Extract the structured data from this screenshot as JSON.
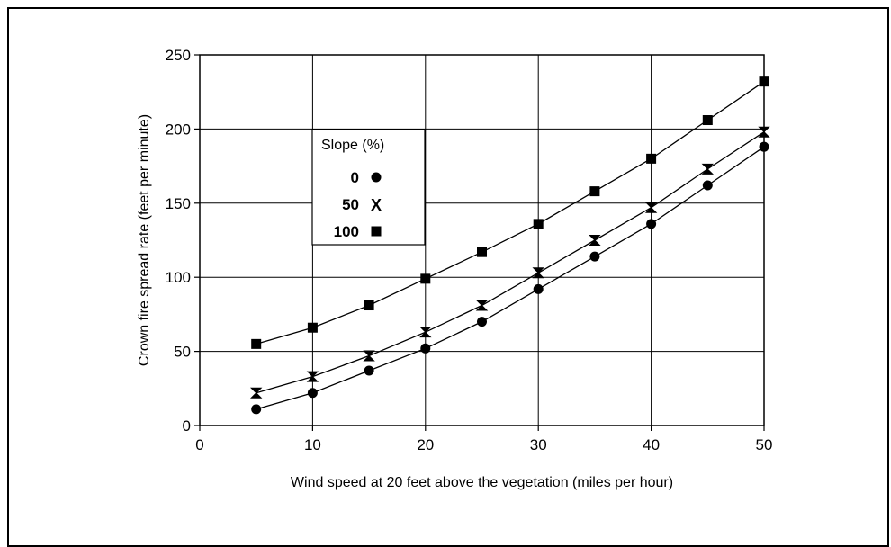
{
  "chart_data": {
    "type": "line",
    "title": "",
    "xlabel": "Wind speed at 20 feet above the vegetation (miles per hour)",
    "ylabel": "Crown fire spread rate (feet per minute)",
    "xlim": [
      0,
      50
    ],
    "ylim": [
      0,
      250
    ],
    "x_ticks": [
      0,
      10,
      20,
      30,
      40,
      50
    ],
    "y_ticks": [
      0,
      50,
      100,
      150,
      200,
      250
    ],
    "grid": true,
    "legend": {
      "title": "Slope (%)",
      "placement": "upper-left"
    },
    "x": [
      5,
      10,
      15,
      20,
      25,
      30,
      35,
      40,
      45,
      50
    ],
    "series": [
      {
        "name": "0",
        "marker": "circle",
        "values": [
          11,
          22,
          37,
          52,
          70,
          92,
          114,
          136,
          162,
          188
        ]
      },
      {
        "name": "50",
        "marker": "x",
        "values": [
          22,
          33,
          47,
          63,
          81,
          103,
          125,
          147,
          173,
          198
        ]
      },
      {
        "name": "100",
        "marker": "square",
        "values": [
          55,
          66,
          81,
          99,
          117,
          136,
          158,
          180,
          206,
          232
        ]
      }
    ]
  }
}
